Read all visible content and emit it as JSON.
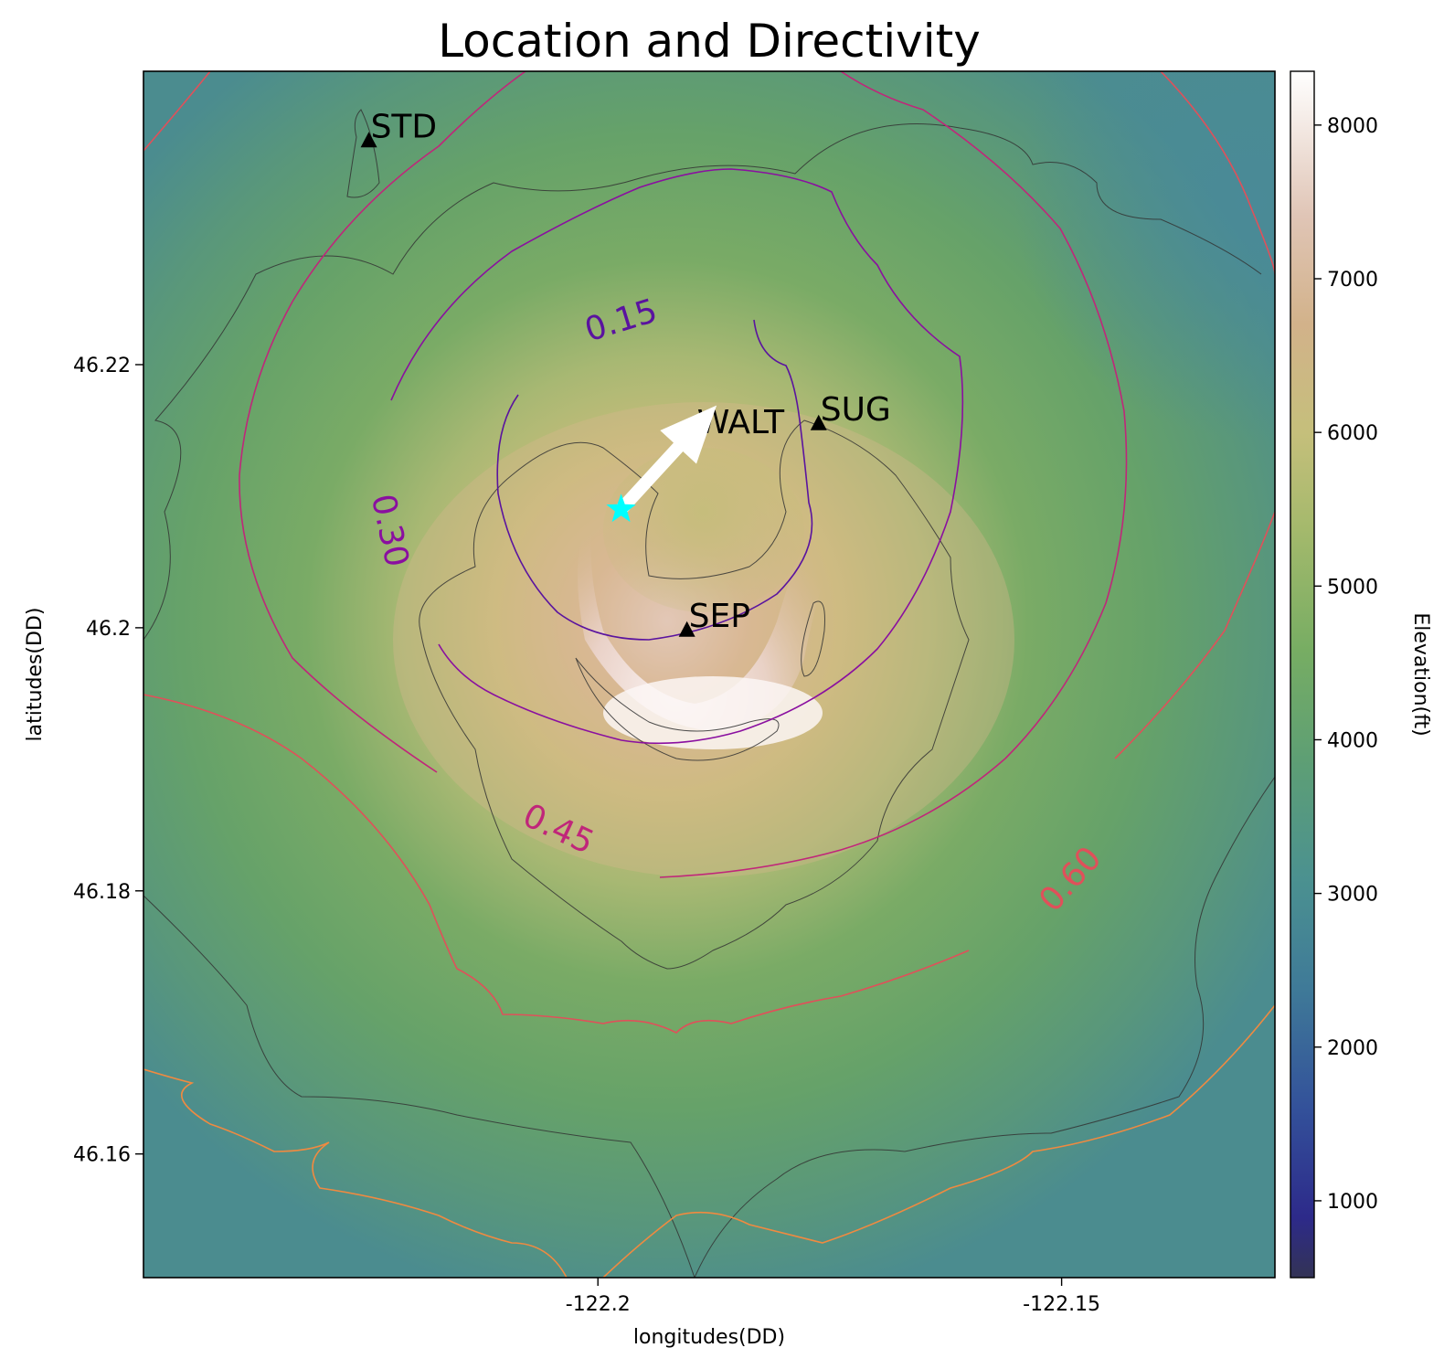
{
  "title": "Location and Directivity",
  "axes": {
    "xlabel": "longitudes(DD)",
    "ylabel": "latitudes(DD)",
    "xticks": [
      {
        "value": -122.2,
        "label": "-122.2"
      },
      {
        "value": -122.15,
        "label": "-122.15"
      }
    ],
    "yticks": [
      {
        "value": 46.22,
        "label": "46.22"
      },
      {
        "value": 46.2,
        "label": "46.2"
      },
      {
        "value": 46.18,
        "label": "46.18"
      },
      {
        "value": 46.16,
        "label": "46.16"
      }
    ],
    "xlim": [
      -122.249,
      -122.127
    ],
    "ylim": [
      46.1506,
      46.2423
    ]
  },
  "colorbar": {
    "label": "Elevation(ft)",
    "range": [
      500,
      8350
    ],
    "colormap": "gist_earth",
    "ticks": [
      {
        "value": 1000,
        "label": "1000"
      },
      {
        "value": 2000,
        "label": "2000"
      },
      {
        "value": 3000,
        "label": "3000"
      },
      {
        "value": 4000,
        "label": "4000"
      },
      {
        "value": 5000,
        "label": "5000"
      },
      {
        "value": 6000,
        "label": "6000"
      },
      {
        "value": 7000,
        "label": "7000"
      },
      {
        "value": 8000,
        "label": "8000"
      }
    ]
  },
  "stations": [
    {
      "name": "STD",
      "lon": -122.2247,
      "lat": 46.237
    },
    {
      "name": "WALT",
      "lon": -122.1895,
      "lat": 46.2145
    },
    {
      "name": "SUG",
      "lon": -122.1762,
      "lat": 46.2155
    },
    {
      "name": "SEP",
      "lon": -122.1904,
      "lat": 46.1998
    }
  ],
  "source": {
    "lon": -122.1975,
    "lat": 46.209,
    "color": "#00ffff",
    "marker": "star"
  },
  "directivity_arrow": {
    "from": {
      "lon": -122.1975,
      "lat": 46.209
    },
    "to": {
      "lon": -122.1872,
      "lat": 46.2169
    },
    "color": "#ffffff"
  },
  "contour_labels": [
    {
      "label": "0.15",
      "color": "#5a139f"
    },
    {
      "label": "0.30",
      "color": "#8a0fa0"
    },
    {
      "label": "0.45",
      "color": "#c0267a"
    },
    {
      "label": "0.60",
      "color": "#e0505a"
    }
  ],
  "contour_colors": {
    "c015": "#5a139f",
    "c030": "#8a0fa0",
    "c045": "#c0267a",
    "c060": "#e0505a",
    "c075": "#f08a40"
  },
  "terrain_colors": {
    "low_blue": "#4a8d96",
    "mid_green": "#6fa868",
    "light_green": "#a6b872",
    "yellow": "#c8be7a",
    "tan": "#d1b48c",
    "pink": "#e9cfcd",
    "white": "#fbf5f5"
  },
  "chart_data": {
    "type": "scatter",
    "title": "Location and Directivity",
    "xlabel": "longitudes(DD)",
    "ylabel": "latitudes(DD)",
    "xlim": [
      -122.249,
      -122.127
    ],
    "ylim": [
      46.1506,
      46.2423
    ],
    "x": [
      -122.2247,
      -122.1895,
      -122.1762,
      -122.1904
    ],
    "y": [
      46.237,
      46.2145,
      46.2155,
      46.1998
    ],
    "point_labels": [
      "STD",
      "WALT",
      "SUG",
      "SEP"
    ],
    "grid": false,
    "contour_levels": [
      0.15,
      0.3,
      0.45,
      0.6
    ]
  }
}
